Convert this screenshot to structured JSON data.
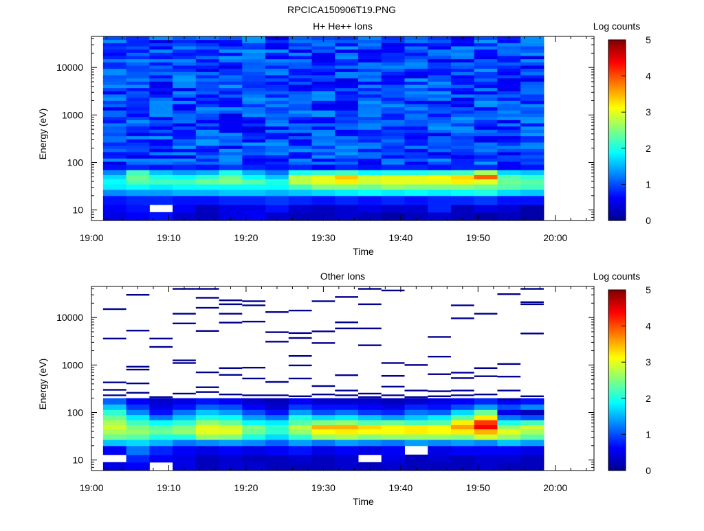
{
  "figure_title": "RPCICA150906T19.PNG",
  "chart_data": [
    {
      "type": "heatmap",
      "title": "H+ He++ Ions",
      "xlabel": "Time",
      "ylabel": "Energy (eV)",
      "x_ticks": [
        "19:00",
        "19:10",
        "19:20",
        "19:30",
        "19:40",
        "19:50",
        "20:00"
      ],
      "xlim": [
        "19:00",
        "20:05"
      ],
      "y_scale": "log",
      "y_ticks": [
        "10",
        "100",
        "1000",
        "10000"
      ],
      "ylim": [
        6,
        45000
      ],
      "time_bins": [
        "19:03",
        "19:06",
        "19:09",
        "19:12",
        "19:15",
        "19:18",
        "19:21",
        "19:24",
        "19:27",
        "19:30",
        "19:33",
        "19:36",
        "19:39",
        "19:42",
        "19:45",
        "19:48",
        "19:51",
        "19:54",
        "19:57"
      ],
      "colorbar": {
        "label": "Log counts",
        "ticks": [
          "0",
          "1",
          "2",
          "3",
          "4",
          "5"
        ],
        "range": [
          0,
          5
        ]
      },
      "grid": false,
      "bands": [
        {
          "energy": [
            6,
            9
          ],
          "values": [
            0.5,
            0.6,
            0.7,
            0.4,
            0.3,
            0.5,
            0.6,
            0.4,
            0.3,
            0.3,
            0.4,
            0.3,
            0.2,
            0.3,
            0.4,
            0.3,
            0.2,
            0.3,
            0.2
          ]
        },
        {
          "energy": [
            9,
            13
          ],
          "values": [
            0.6,
            0.7,
            null,
            0.6,
            0.3,
            0.5,
            0.5,
            0.7,
            0.4,
            0.3,
            0.4,
            0.5,
            0.4,
            0.4,
            0.8,
            0.3,
            0.5,
            0.4,
            0.2
          ]
        },
        {
          "energy": [
            13,
            20
          ],
          "values": [
            0.7,
            0.8,
            0.8,
            0.7,
            0.7,
            0.8,
            0.8,
            0.9,
            0.8,
            0.7,
            0.8,
            0.7,
            0.8,
            0.7,
            0.8,
            0.8,
            0.9,
            0.7,
            0.7
          ]
        },
        {
          "energy": [
            20,
            27
          ],
          "values": [
            1.3,
            1.4,
            1.4,
            1.5,
            1.5,
            1.6,
            1.6,
            1.5,
            1.6,
            1.7,
            1.8,
            1.9,
            1.8,
            1.9,
            1.8,
            1.9,
            2.0,
            1.7,
            1.6
          ]
        },
        {
          "energy": [
            27,
            35
          ],
          "values": [
            1.8,
            1.9,
            1.8,
            1.9,
            1.9,
            1.9,
            1.9,
            1.9,
            2.2,
            2.5,
            2.5,
            2.4,
            2.6,
            2.5,
            2.5,
            2.5,
            2.4,
            2.3,
            2.2
          ]
        },
        {
          "energy": [
            35,
            45
          ],
          "values": [
            1.9,
            2.3,
            2.2,
            2.2,
            2.4,
            2.5,
            2.3,
            2.0,
            2.8,
            3.0,
            3.2,
            2.9,
            3.0,
            3.0,
            3.0,
            3.2,
            3.0,
            2.4,
            2.3
          ]
        },
        {
          "energy": [
            45,
            55
          ],
          "values": [
            1.7,
            2.4,
            2.0,
            1.9,
            2.1,
            2.4,
            1.9,
            1.6,
            2.8,
            3.0,
            3.4,
            2.9,
            3.0,
            3.0,
            3.1,
            3.3,
            3.9,
            2.3,
            2.1
          ]
        },
        {
          "energy": [
            55,
            70
          ],
          "values": [
            1.3,
            2.2,
            1.6,
            1.4,
            1.5,
            2.0,
            1.5,
            1.2,
            2.0,
            2.1,
            2.2,
            1.9,
            2.0,
            2.0,
            2.1,
            2.2,
            2.7,
            1.7,
            1.6
          ]
        },
        {
          "energy": [
            70,
            90
          ],
          "values": [
            0.7,
            0.8,
            0.7,
            0.8,
            0.7,
            0.9,
            0.8,
            0.7,
            0.8,
            0.6,
            0.8,
            0.7,
            0.8,
            0.8,
            0.7,
            0.8,
            0.8,
            0.6,
            0.7
          ]
        }
      ],
      "upper_background": {
        "energy": [
          90,
          45000
        ],
        "typical_log_counts": [
          0.5,
          1.4
        ]
      }
    },
    {
      "type": "heatmap",
      "title": "Other Ions",
      "xlabel": "Time",
      "ylabel": "Energy (eV)",
      "x_ticks": [
        "19:00",
        "19:10",
        "19:20",
        "19:30",
        "19:40",
        "19:50",
        "20:00"
      ],
      "xlim": [
        "19:00",
        "20:05"
      ],
      "y_scale": "log",
      "y_ticks": [
        "10",
        "100",
        "1000",
        "10000"
      ],
      "ylim": [
        6,
        45000
      ],
      "time_bins": [
        "19:03",
        "19:06",
        "19:09",
        "19:12",
        "19:15",
        "19:18",
        "19:21",
        "19:24",
        "19:27",
        "19:30",
        "19:33",
        "19:36",
        "19:39",
        "19:42",
        "19:45",
        "19:48",
        "19:51",
        "19:54",
        "19:57"
      ],
      "colorbar": {
        "label": "Log counts",
        "ticks": [
          "0",
          "1",
          "2",
          "3",
          "4",
          "5"
        ],
        "range": [
          0,
          5
        ]
      },
      "grid": false,
      "bands": [
        {
          "energy": [
            6,
            9
          ],
          "values": [
            0.5,
            0.6,
            null,
            0.5,
            0.3,
            0.4,
            0.4,
            0.3,
            0.3,
            0.3,
            0.4,
            0.3,
            0.4,
            0.3,
            0.3,
            0.3,
            0.4,
            0.3,
            0.3
          ]
        },
        {
          "energy": [
            9,
            13
          ],
          "values": [
            null,
            0.8,
            0.6,
            0.5,
            0.3,
            0.4,
            0.3,
            0.3,
            0.4,
            0.3,
            0.4,
            null,
            0.5,
            0.3,
            0.4,
            0.3,
            0.4,
            0.4,
            0.3
          ]
        },
        {
          "energy": [
            13,
            20
          ],
          "values": [
            0.6,
            1.2,
            0.8,
            0.6,
            0.5,
            0.6,
            0.5,
            0.6,
            0.7,
            0.5,
            0.6,
            0.5,
            0.6,
            null,
            0.5,
            0.6,
            0.6,
            0.6,
            0.5
          ]
        },
        {
          "energy": [
            20,
            27
          ],
          "values": [
            1.6,
            1.7,
            1.5,
            1.2,
            1.3,
            1.4,
            1.3,
            1.1,
            1.4,
            1.2,
            1.4,
            1.3,
            1.2,
            1.4,
            1.3,
            1.4,
            1.3,
            1.6,
            1.4
          ]
        },
        {
          "energy": [
            27,
            35
          ],
          "values": [
            2.4,
            2.3,
            2.0,
            2.0,
            2.6,
            2.5,
            2.0,
            1.7,
            2.1,
            2.6,
            2.7,
            2.5,
            2.6,
            2.6,
            2.6,
            2.5,
            2.9,
            2.6,
            2.3
          ]
        },
        {
          "energy": [
            35,
            45
          ],
          "values": [
            2.7,
            2.6,
            2.4,
            2.6,
            3.0,
            3.0,
            2.4,
            2.1,
            2.6,
            3.1,
            3.2,
            3.1,
            3.1,
            3.2,
            3.1,
            3.2,
            3.5,
            3.0,
            2.7
          ]
        },
        {
          "energy": [
            45,
            55
          ],
          "values": [
            2.9,
            2.5,
            2.3,
            2.5,
            3.0,
            2.9,
            2.5,
            2.1,
            2.8,
            3.5,
            3.5,
            3.3,
            3.1,
            3.2,
            3.1,
            3.6,
            4.4,
            2.6,
            2.9
          ]
        },
        {
          "energy": [
            55,
            70
          ],
          "values": [
            2.7,
            2.2,
            1.9,
            2.1,
            2.6,
            2.4,
            1.9,
            1.8,
            2.3,
            2.5,
            2.6,
            2.3,
            2.4,
            2.2,
            2.3,
            3.2,
            4.1,
            2.0,
            2.2
          ]
        },
        {
          "energy": [
            70,
            90
          ],
          "values": [
            2.4,
            1.8,
            1.2,
            1.6,
            2.0,
            1.9,
            1.4,
            1.2,
            2.0,
            1.7,
            1.8,
            1.6,
            1.4,
            1.6,
            1.8,
            2.3,
            3.2,
            1.2,
            1.0
          ]
        },
        {
          "energy": [
            90,
            115
          ],
          "values": [
            2.1,
            1.3,
            0.7,
            1.2,
            1.6,
            1.4,
            1.0,
            0.7,
            1.4,
            1.0,
            1.2,
            0.9,
            0.8,
            1.2,
            1.1,
            1.7,
            2.4,
            0.5,
            0.3
          ]
        },
        {
          "energy": [
            115,
            150
          ],
          "values": [
            1.6,
            0.9,
            0.5,
            0.7,
            1.1,
            1.0,
            0.6,
            0.4,
            0.9,
            0.7,
            0.7,
            0.6,
            0.5,
            0.8,
            0.7,
            1.0,
            1.4,
            1.0,
            1.3
          ]
        },
        {
          "energy": [
            150,
            200
          ],
          "values": [
            1.1,
            0.6,
            0.4,
            0.5,
            0.7,
            0.6,
            0.4,
            0.3,
            0.6,
            0.4,
            0.4,
            0.4,
            0.3,
            0.4,
            0.5,
            0.6,
            0.8,
            0.6,
            0.7
          ]
        }
      ],
      "sparse_lines": [
        {
          "time_bin": "19:03",
          "energy": [
            230,
            300,
            430,
            3600,
            15000
          ]
        },
        {
          "time_bin": "19:06",
          "energy": [
            260,
            410,
            800,
            920,
            5300,
            30000
          ]
        },
        {
          "time_bin": "19:09",
          "energy": [
            210,
            2400,
            3600
          ]
        },
        {
          "time_bin": "19:12",
          "energy": [
            250,
            1100,
            1250,
            7500,
            12000,
            40000
          ]
        },
        {
          "time_bin": "19:15",
          "energy": [
            270,
            340,
            700,
            5200,
            16000,
            26000,
            40000
          ]
        },
        {
          "time_bin": "19:18",
          "energy": [
            240,
            620,
            860,
            7800,
            12000,
            19000,
            23000
          ]
        },
        {
          "time_bin": "19:21",
          "energy": [
            230,
            520,
            880,
            8200,
            18000,
            22000
          ]
        },
        {
          "time_bin": "19:24",
          "energy": [
            230,
            440,
            3100,
            4900,
            13000
          ]
        },
        {
          "time_bin": "19:27",
          "energy": [
            220,
            520,
            980,
            1550,
            3700,
            4700,
            14000
          ]
        },
        {
          "time_bin": "19:30",
          "energy": [
            240,
            360,
            2900,
            5100,
            22000
          ]
        },
        {
          "time_bin": "19:33",
          "energy": [
            230,
            290,
            610,
            5900,
            7900,
            27000
          ]
        },
        {
          "time_bin": "19:36",
          "energy": [
            210,
            250,
            2600,
            5900,
            19000,
            40000
          ]
        },
        {
          "time_bin": "19:39",
          "energy": [
            230,
            350,
            590,
            1100,
            37000
          ]
        },
        {
          "time_bin": "19:42",
          "energy": [
            210,
            290,
            1000
          ]
        },
        {
          "time_bin": "19:45",
          "energy": [
            220,
            280,
            640,
            1500,
            3900
          ]
        },
        {
          "time_bin": "19:48",
          "energy": [
            230,
            290,
            530,
            690,
            9600,
            18000
          ]
        },
        {
          "time_bin": "19:51",
          "energy": [
            240,
            580,
            860,
            12000
          ]
        },
        {
          "time_bin": "19:54",
          "energy": [
            190,
            290,
            570,
            1050,
            31000
          ]
        },
        {
          "time_bin": "19:57",
          "energy": [
            220,
            4600,
            19000,
            21000,
            40000
          ]
        }
      ]
    }
  ]
}
